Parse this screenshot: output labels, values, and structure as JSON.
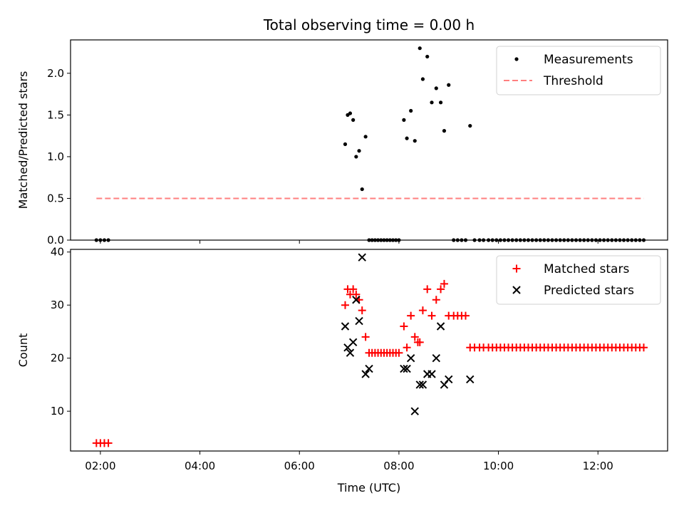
{
  "chart_data": {
    "title": "Total observing time = 0.00 h",
    "xlabel": "Time (UTC)",
    "x_unit": "hours UTC",
    "xlim": [
      1.4,
      13.4
    ],
    "xticks": [
      {
        "value": 2,
        "label": "02:00"
      },
      {
        "value": 4,
        "label": "04:00"
      },
      {
        "value": 6,
        "label": "06:00"
      },
      {
        "value": 8,
        "label": "08:00"
      },
      {
        "value": 10,
        "label": "10:00"
      },
      {
        "value": 12,
        "label": "12:00"
      }
    ],
    "panels": [
      {
        "type": "scatter",
        "ylabel": "Matched/Predicted stars",
        "ylim": [
          0,
          2.4
        ],
        "yticks": [
          0.0,
          0.5,
          1.0,
          1.5,
          2.0
        ],
        "ytick_labels": [
          "0.0",
          "0.5",
          "1.0",
          "1.5",
          "2.0"
        ],
        "legend_position": "upper right",
        "series": [
          {
            "name": "Measurements",
            "marker": "dot",
            "color": "#000000",
            "x": [
              1.92,
              2.0,
              2.08,
              2.16,
              6.92,
              6.97,
              7.02,
              7.08,
              7.14,
              7.2,
              7.26,
              7.33,
              7.4,
              7.46,
              7.52,
              7.58,
              7.64,
              7.7,
              7.76,
              7.82,
              7.88,
              7.94,
              8.0,
              8.1,
              8.16,
              8.24,
              8.32,
              8.42,
              8.48,
              8.57,
              8.66,
              8.75,
              8.84,
              8.91,
              9.0,
              9.1,
              9.18,
              9.26,
              9.34,
              9.43,
              9.52,
              9.62,
              9.7,
              9.8,
              9.88,
              9.96,
              10.04,
              10.12,
              10.2,
              10.28,
              10.36,
              10.44,
              10.52,
              10.6,
              10.68,
              10.76,
              10.84,
              10.92,
              11.0,
              11.08,
              11.16,
              11.24,
              11.32,
              11.4,
              11.48,
              11.56,
              11.64,
              11.72,
              11.8,
              11.88,
              11.96,
              12.04,
              12.12,
              12.2,
              12.28,
              12.36,
              12.44,
              12.52,
              12.6,
              12.68,
              12.76,
              12.84,
              12.92
            ],
            "y": [
              0,
              0,
              0,
              0,
              1.15,
              1.5,
              1.52,
              1.44,
              1.0,
              1.07,
              0.61,
              1.24,
              0,
              0,
              0,
              0,
              0,
              0,
              0,
              0,
              0,
              0,
              0,
              1.44,
              1.22,
              1.55,
              1.19,
              2.3,
              1.93,
              2.2,
              1.65,
              1.82,
              1.65,
              1.31,
              1.86,
              0,
              0,
              0,
              0,
              1.37,
              0,
              0,
              0,
              0,
              0,
              0,
              0,
              0,
              0,
              0,
              0,
              0,
              0,
              0,
              0,
              0,
              0,
              0,
              0,
              0,
              0,
              0,
              0,
              0,
              0,
              0,
              0,
              0,
              0,
              0,
              0,
              0,
              0,
              0,
              0,
              0,
              0,
              0,
              0,
              0,
              0,
              0,
              0
            ]
          },
          {
            "name": "Threshold",
            "marker": "dashed-line",
            "color": "#ff7f7f",
            "x": [
              1.92,
              12.92
            ],
            "y": [
              0.5,
              0.5
            ]
          }
        ]
      },
      {
        "type": "scatter",
        "ylabel": "Count",
        "ylim": [
          2.5,
          40.5
        ],
        "yticks": [
          10,
          20,
          30,
          40
        ],
        "ytick_labels": [
          "10",
          "20",
          "30",
          "40"
        ],
        "legend_position": "upper right",
        "series": [
          {
            "name": "Matched stars",
            "marker": "plus",
            "color": "#ff0000",
            "x": [
              1.92,
              2.0,
              2.08,
              2.16,
              6.92,
              6.97,
              7.02,
              7.08,
              7.14,
              7.2,
              7.26,
              7.33,
              7.4,
              7.46,
              7.52,
              7.58,
              7.64,
              7.7,
              7.76,
              7.82,
              7.88,
              7.94,
              8.0,
              8.1,
              8.16,
              8.24,
              8.32,
              8.38,
              8.42,
              8.48,
              8.57,
              8.66,
              8.75,
              8.84,
              8.91,
              9.0,
              9.1,
              9.18,
              9.26,
              9.34,
              9.43,
              9.52,
              9.62,
              9.7,
              9.8,
              9.88,
              9.96,
              10.04,
              10.12,
              10.2,
              10.28,
              10.36,
              10.44,
              10.52,
              10.6,
              10.68,
              10.76,
              10.84,
              10.92,
              11.0,
              11.08,
              11.16,
              11.24,
              11.32,
              11.4,
              11.48,
              11.56,
              11.64,
              11.72,
              11.8,
              11.88,
              11.96,
              12.04,
              12.12,
              12.2,
              12.28,
              12.36,
              12.44,
              12.52,
              12.6,
              12.68,
              12.76,
              12.84,
              12.92
            ],
            "y": [
              4,
              4,
              4,
              4,
              30,
              33,
              32,
              33,
              32,
              31,
              29,
              24,
              21,
              21,
              21,
              21,
              21,
              21,
              21,
              21,
              21,
              21,
              21,
              26,
              22,
              28,
              24,
              23,
              23,
              29,
              33,
              28,
              31,
              33,
              34,
              28,
              28,
              28,
              28,
              28,
              22,
              22,
              22,
              22,
              22,
              22,
              22,
              22,
              22,
              22,
              22,
              22,
              22,
              22,
              22,
              22,
              22,
              22,
              22,
              22,
              22,
              22,
              22,
              22,
              22,
              22,
              22,
              22,
              22,
              22,
              22,
              22,
              22,
              22,
              22,
              22,
              22,
              22,
              22,
              22,
              22,
              22,
              22,
              22
            ]
          },
          {
            "name": "Predicted stars",
            "marker": "x",
            "color": "#000000",
            "x": [
              6.92,
              6.97,
              7.02,
              7.08,
              7.14,
              7.2,
              7.26,
              7.33,
              7.4,
              8.1,
              8.16,
              8.24,
              8.32,
              8.42,
              8.48,
              8.57,
              8.66,
              8.75,
              8.84,
              8.91,
              9.0,
              9.43
            ],
            "y": [
              26,
              22,
              21,
              23,
              31,
              27,
              39,
              17,
              18,
              18,
              18,
              20,
              10,
              15,
              15,
              17,
              17,
              20,
              26,
              15,
              16,
              16
            ]
          }
        ]
      }
    ]
  }
}
